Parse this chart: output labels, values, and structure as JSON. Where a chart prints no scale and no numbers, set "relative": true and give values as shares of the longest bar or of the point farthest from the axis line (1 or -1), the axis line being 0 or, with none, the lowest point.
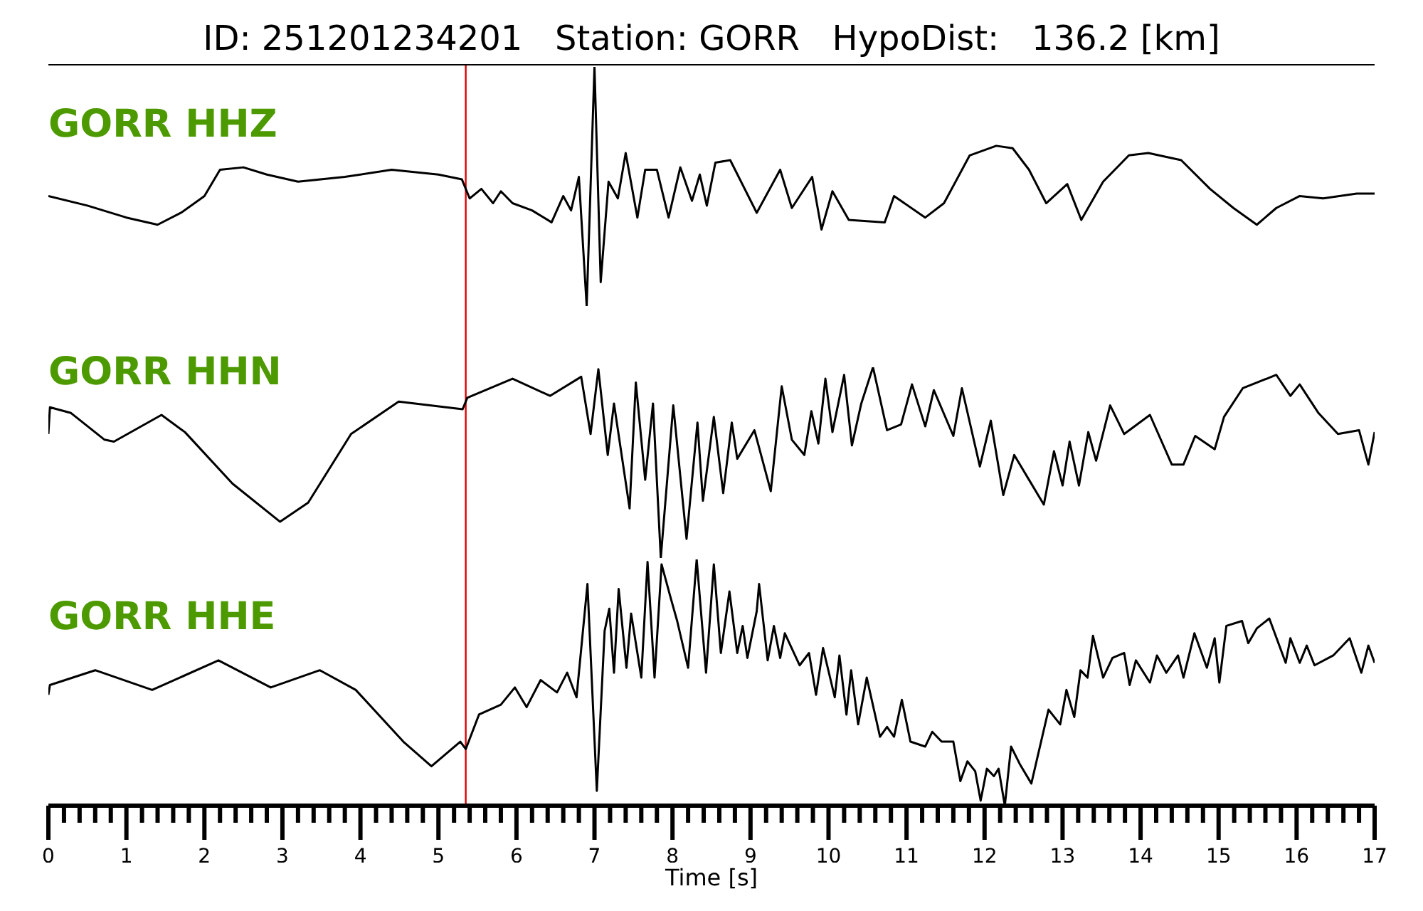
{
  "chart_data": [
    {
      "type": "line",
      "title": "ID: 251201234201   Station: GORR   HypoDist:   136.2 [km]",
      "relative": true,
      "xlim": [
        0,
        17
      ],
      "tick_labels": false,
      "x": [
        0,
        0.5,
        1,
        1.4,
        1.7,
        2.0,
        2.2,
        2.5,
        2.8,
        3.2,
        3.8,
        4.4,
        5.0,
        5.3,
        5.4,
        5.55,
        5.7,
        5.8,
        5.95,
        6.2,
        6.45,
        6.6,
        6.7,
        6.8,
        6.9,
        7.0,
        7.08,
        7.18,
        7.3,
        7.4,
        7.55,
        7.65,
        7.8,
        7.95,
        8.1,
        8.25,
        8.35,
        8.44,
        8.55,
        8.74,
        9.08,
        9.38,
        9.53,
        9.79,
        9.91,
        10.05,
        10.26,
        10.72,
        10.84,
        11.24,
        11.48,
        11.81,
        12.15,
        12.36,
        12.57,
        12.79,
        13.06,
        13.24,
        13.52,
        13.85,
        14.1,
        14.52,
        14.89,
        15.19,
        15.49,
        15.74,
        16.04,
        16.34,
        16.77,
        17.0
      ],
      "series": [
        {
          "name": "GORR HHZ",
          "color": "#000000",
          "values": [
            0.46,
            0.42,
            0.37,
            0.34,
            0.39,
            0.46,
            0.57,
            0.58,
            0.55,
            0.52,
            0.54,
            0.57,
            0.55,
            0.53,
            0.45,
            0.49,
            0.43,
            0.48,
            0.43,
            0.4,
            0.35,
            0.46,
            0.4,
            0.54,
            0,
            1,
            0.1,
            0.52,
            0.45,
            0.64,
            0.37,
            0.57,
            0.57,
            0.37,
            0.58,
            0.44,
            0.55,
            0.42,
            0.6,
            0.61,
            0.39,
            0.57,
            0.41,
            0.54,
            0.32,
            0.48,
            0.36,
            0.35,
            0.46,
            0.37,
            0.43,
            0.63,
            0.67,
            0.66,
            0.57,
            0.43,
            0.51,
            0.36,
            0.52,
            0.63,
            0.64,
            0.61,
            0.49,
            0.41,
            0.34,
            0.41,
            0.46,
            0.45,
            0.47,
            0.47
          ]
        }
      ],
      "ref_lines": [
        {
          "axis": "x",
          "value": 5.35,
          "color": "#e00000"
        }
      ]
    },
    {
      "type": "line",
      "relative": true,
      "xlim": [
        0,
        17
      ],
      "tick_labels": false,
      "x": [
        0,
        0.02,
        0.29,
        0.72,
        0.84,
        1.45,
        1.75,
        2.36,
        2.97,
        3.33,
        3.88,
        4.49,
        5.1,
        5.31,
        5.37,
        5.95,
        6.43,
        6.83,
        6.95,
        7.05,
        7.17,
        7.25,
        7.45,
        7.53,
        7.65,
        7.75,
        7.85,
        8.01,
        8.18,
        8.32,
        8.39,
        8.53,
        8.65,
        8.76,
        8.83,
        9.05,
        9.26,
        9.4,
        9.53,
        9.69,
        9.78,
        9.87,
        9.96,
        10.05,
        10.2,
        10.3,
        10.42,
        10.57,
        10.75,
        10.93,
        11.07,
        11.24,
        11.35,
        11.6,
        11.71,
        11.94,
        12.08,
        12.24,
        12.38,
        12.57,
        12.76,
        12.89,
        13.0,
        13.09,
        13.21,
        13.33,
        13.43,
        13.61,
        13.79,
        14.12,
        14.4,
        14.55,
        14.7,
        14.95,
        15.07,
        15.31,
        15.74,
        15.92,
        16.04,
        16.28,
        16.53,
        16.8,
        16.92,
        17.0
      ],
      "series": [
        {
          "name": "GORR HHN",
          "color": "#000000",
          "values": [
            0.65,
            0.79,
            0.76,
            0.62,
            0.61,
            0.75,
            0.66,
            0.39,
            0.19,
            0.29,
            0.65,
            0.82,
            0.79,
            0.78,
            0.84,
            0.94,
            0.85,
            0.95,
            0.65,
            0.99,
            0.54,
            0.81,
            0.26,
            0.92,
            0.41,
            0.81,
            0,
            0.8,
            0.1,
            0.71,
            0.3,
            0.74,
            0.34,
            0.71,
            0.52,
            0.67,
            0.35,
            0.9,
            0.62,
            0.54,
            0.77,
            0.6,
            0.94,
            0.66,
            0.96,
            0.59,
            0.81,
            1,
            0.67,
            0.7,
            0.91,
            0.69,
            0.88,
            0.64,
            0.89,
            0.48,
            0.72,
            0.33,
            0.54,
            0.41,
            0.28,
            0.56,
            0.38,
            0.61,
            0.38,
            0.66,
            0.51,
            0.8,
            0.65,
            0.75,
            0.49,
            0.49,
            0.64,
            0.57,
            0.74,
            0.89,
            0.96,
            0.85,
            0.91,
            0.76,
            0.65,
            0.67,
            0.49,
            0.66
          ]
        }
      ],
      "ref_lines": [
        {
          "axis": "x",
          "value": 5.35,
          "color": "#e00000"
        }
      ]
    },
    {
      "type": "line",
      "relative": true,
      "xlabel": "Time [s]",
      "xlim": [
        0,
        17
      ],
      "xticks": [
        0,
        1,
        2,
        3,
        4,
        5,
        6,
        7,
        8,
        9,
        10,
        11,
        12,
        13,
        14,
        15,
        16,
        17,
        {
          "value": 0.2,
          "label": null
        },
        {
          "value": 0.4,
          "label": null
        },
        {
          "value": 0.6,
          "label": null
        },
        {
          "value": 0.8,
          "label": null
        },
        {
          "value": 1.2,
          "label": null
        },
        {
          "value": 1.4,
          "label": null
        },
        {
          "value": 1.6,
          "label": null
        },
        {
          "value": 1.8,
          "label": null
        },
        {
          "value": 2.2,
          "label": null
        },
        {
          "value": 2.4,
          "label": null
        },
        {
          "value": 2.6,
          "label": null
        },
        {
          "value": 2.8,
          "label": null
        },
        {
          "value": 3.2,
          "label": null
        },
        {
          "value": 3.4,
          "label": null
        },
        {
          "value": 3.6,
          "label": null
        },
        {
          "value": 3.8,
          "label": null
        },
        {
          "value": 4.2,
          "label": null
        },
        {
          "value": 4.4,
          "label": null
        },
        {
          "value": 4.6,
          "label": null
        },
        {
          "value": 4.8,
          "label": null
        },
        {
          "value": 5.2,
          "label": null
        },
        {
          "value": 5.4,
          "label": null
        },
        {
          "value": 5.6,
          "label": null
        },
        {
          "value": 5.8,
          "label": null
        },
        {
          "value": 6.2,
          "label": null
        },
        {
          "value": 6.4,
          "label": null
        },
        {
          "value": 6.6,
          "label": null
        },
        {
          "value": 6.8,
          "label": null
        },
        {
          "value": 7.2,
          "label": null
        },
        {
          "value": 7.4,
          "label": null
        },
        {
          "value": 7.6,
          "label": null
        },
        {
          "value": 7.8,
          "label": null
        },
        {
          "value": 8.2,
          "label": null
        },
        {
          "value": 8.4,
          "label": null
        },
        {
          "value": 8.6,
          "label": null
        },
        {
          "value": 8.8,
          "label": null
        },
        {
          "value": 9.2,
          "label": null
        },
        {
          "value": 9.4,
          "label": null
        },
        {
          "value": 9.6,
          "label": null
        },
        {
          "value": 9.8,
          "label": null
        },
        {
          "value": 10.2,
          "label": null
        },
        {
          "value": 10.4,
          "label": null
        },
        {
          "value": 10.6,
          "label": null
        },
        {
          "value": 10.8,
          "label": null
        },
        {
          "value": 11.2,
          "label": null
        },
        {
          "value": 11.4,
          "label": null
        },
        {
          "value": 11.6,
          "label": null
        },
        {
          "value": 11.8,
          "label": null
        },
        {
          "value": 12.2,
          "label": null
        },
        {
          "value": 12.4,
          "label": null
        },
        {
          "value": 12.6,
          "label": null
        },
        {
          "value": 12.8,
          "label": null
        },
        {
          "value": 13.2,
          "label": null
        },
        {
          "value": 13.4,
          "label": null
        },
        {
          "value": 13.6,
          "label": null
        },
        {
          "value": 13.8,
          "label": null
        },
        {
          "value": 14.2,
          "label": null
        },
        {
          "value": 14.4,
          "label": null
        },
        {
          "value": 14.6,
          "label": null
        },
        {
          "value": 14.8,
          "label": null
        },
        {
          "value": 15.2,
          "label": null
        },
        {
          "value": 15.4,
          "label": null
        },
        {
          "value": 15.6,
          "label": null
        },
        {
          "value": 15.8,
          "label": null
        },
        {
          "value": 16.2,
          "label": null
        },
        {
          "value": 16.4,
          "label": null
        },
        {
          "value": 16.6,
          "label": null
        },
        {
          "value": 16.8,
          "label": null
        }
      ],
      "tick_labels": "x",
      "x": [
        0,
        0.02,
        0.6,
        1.33,
        2.18,
        2.85,
        3.48,
        3.94,
        4.55,
        4.91,
        5.28,
        5.35,
        5.52,
        5.8,
        5.98,
        6.13,
        6.31,
        6.52,
        6.65,
        6.77,
        6.91,
        7.03,
        7.13,
        7.19,
        7.25,
        7.31,
        7.41,
        7.47,
        7.6,
        7.68,
        7.77,
        7.86,
        7.98,
        8.06,
        8.2,
        8.31,
        8.43,
        8.53,
        8.62,
        8.73,
        8.83,
        8.9,
        8.96,
        9.08,
        9.11,
        9.22,
        9.3,
        9.38,
        9.44,
        9.63,
        9.75,
        9.84,
        9.93,
        10.08,
        10.14,
        10.23,
        10.29,
        10.38,
        10.49,
        10.66,
        10.75,
        10.84,
        10.94,
        11.05,
        11.24,
        11.33,
        11.45,
        11.6,
        11.69,
        11.78,
        11.88,
        11.95,
        12.03,
        12.12,
        12.18,
        12.26,
        12.34,
        12.45,
        12.6,
        12.82,
        12.97,
        13.05,
        13.15,
        13.23,
        13.32,
        13.39,
        13.52,
        13.64,
        13.79,
        13.86,
        13.94,
        14.12,
        14.21,
        14.33,
        14.48,
        14.55,
        14.69,
        14.85,
        14.95,
        15.01,
        15.1,
        15.3,
        15.38,
        15.49,
        15.65,
        15.86,
        15.92,
        16.04,
        16.13,
        16.23,
        16.47,
        16.68,
        16.83,
        16.92,
        17.0
      ],
      "series": [
        {
          "name": "GORR HHE",
          "color": "#000000",
          "values": [
            0.45,
            0.49,
            0.55,
            0.47,
            0.59,
            0.48,
            0.55,
            0.47,
            0.26,
            0.16,
            0.26,
            0.23,
            0.37,
            0.41,
            0.48,
            0.4,
            0.51,
            0.46,
            0.54,
            0.44,
            0.9,
            0.06,
            0.71,
            0.8,
            0.54,
            0.88,
            0.56,
            0.78,
            0.52,
            0.99,
            0.52,
            0.98,
            0.84,
            0.75,
            0.56,
            1,
            0.54,
            0.98,
            0.62,
            0.87,
            0.62,
            0.73,
            0.6,
            0.79,
            0.9,
            0.59,
            0.73,
            0.6,
            0.7,
            0.57,
            0.62,
            0.45,
            0.64,
            0.44,
            0.61,
            0.37,
            0.55,
            0.33,
            0.52,
            0.28,
            0.32,
            0.28,
            0.43,
            0.26,
            0.24,
            0.3,
            0.26,
            0.26,
            0.1,
            0.18,
            0.14,
            0.02,
            0.15,
            0.12,
            0.15,
            0,
            0.24,
            0.17,
            0.09,
            0.39,
            0.33,
            0.47,
            0.36,
            0.55,
            0.52,
            0.69,
            0.52,
            0.6,
            0.62,
            0.49,
            0.59,
            0.5,
            0.61,
            0.54,
            0.61,
            0.52,
            0.7,
            0.56,
            0.68,
            0.5,
            0.73,
            0.75,
            0.66,
            0.72,
            0.76,
            0.58,
            0.68,
            0.58,
            0.65,
            0.57,
            0.61,
            0.68,
            0.54,
            0.65,
            0.58
          ]
        }
      ],
      "ref_lines": [
        {
          "axis": "x",
          "value": 5.35,
          "color": "#e00000"
        }
      ]
    }
  ]
}
